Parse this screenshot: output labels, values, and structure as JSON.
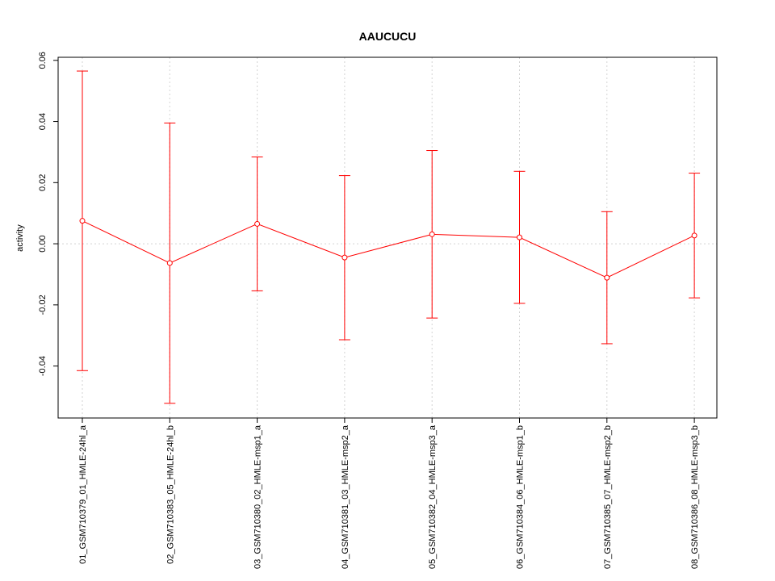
{
  "chart_data": {
    "type": "line",
    "title": "AAUCUCU",
    "xlabel": "",
    "ylabel": "activity",
    "ylim": [
      -0.057,
      0.061
    ],
    "yticks": [
      -0.04,
      -0.02,
      0.0,
      0.02,
      0.04,
      0.06
    ],
    "ytick_labels": [
      "-0.04",
      "-0.02",
      "0.00",
      "0.02",
      "0.04",
      "0.06"
    ],
    "grid": true,
    "reference_line_y": 0.0,
    "color": "#ff0000",
    "categories": [
      "01_GSM710379_01_HMLE-24hl_a",
      "02_GSM710383_05_HMLE-24hl_b",
      "03_GSM710380_02_HMLE-msp1_a",
      "04_GSM710381_03_HMLE-msp2_a",
      "05_GSM710382_04_HMLE-msp3_a",
      "06_GSM710384_06_HMLE-msp1_b",
      "07_GSM710385_07_HMLE-msp2_b",
      "08_GSM710386_08_HMLE-msp3_b"
    ],
    "series": [
      {
        "values": [
          0.0075,
          -0.0063,
          0.0065,
          -0.0045,
          0.0031,
          0.0021,
          -0.0111,
          0.0027
        ],
        "upper": [
          0.0565,
          0.0395,
          0.0284,
          0.0223,
          0.0305,
          0.0237,
          0.0105,
          0.0231
        ],
        "lower": [
          -0.0415,
          -0.0522,
          -0.0154,
          -0.0314,
          -0.0243,
          -0.0195,
          -0.0327,
          -0.0177
        ]
      }
    ]
  }
}
